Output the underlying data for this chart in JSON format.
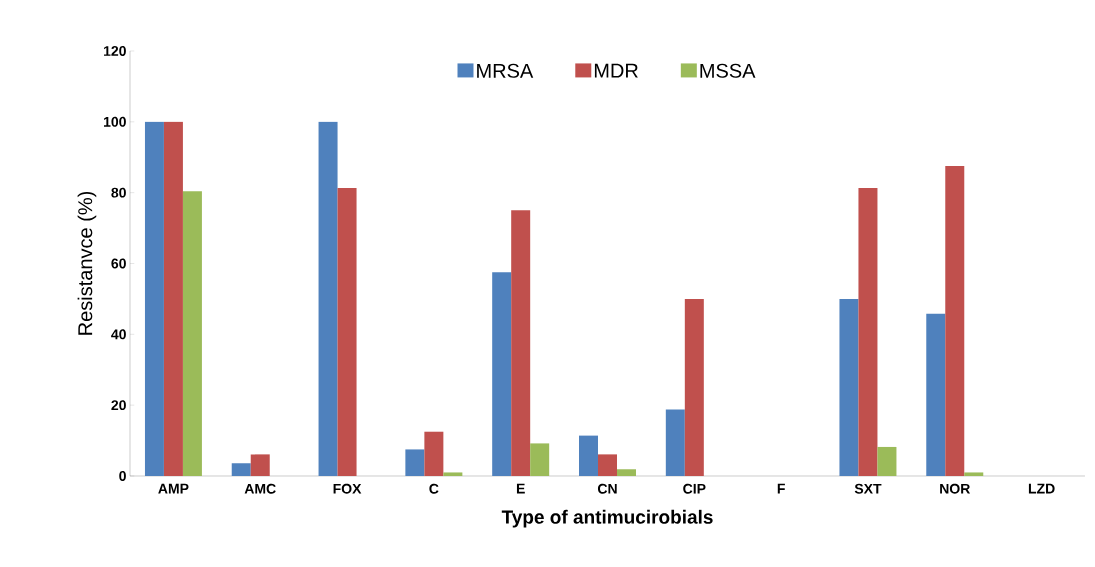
{
  "chart_data": {
    "type": "bar",
    "xlabel": "Type of antimucirobials",
    "ylabel": "Resistanvce (%)",
    "categories": [
      "AMP",
      "AMC",
      "FOX",
      "C",
      "E",
      "CN",
      "CIP",
      "F",
      "SXT",
      "NOR",
      "LZD"
    ],
    "series": [
      {
        "name": "MRSA",
        "color": "#4f81bd",
        "values": [
          100,
          3.6,
          100,
          7.5,
          57.5,
          11.4,
          18.8,
          0,
          50,
          45.8,
          0
        ]
      },
      {
        "name": "MDR",
        "color": "#c0504d",
        "values": [
          100,
          6.1,
          81.3,
          12.5,
          75,
          6.1,
          50,
          0,
          81.3,
          87.5,
          0
        ]
      },
      {
        "name": "MSSA",
        "color": "#9bbb59",
        "values": [
          80.4,
          0,
          0,
          1,
          9.2,
          1.9,
          0,
          0,
          8.2,
          1,
          0
        ]
      }
    ],
    "ylim": [
      0,
      120
    ],
    "yticks": [
      0,
      20,
      40,
      60,
      80,
      100,
      120
    ],
    "grid": false,
    "legend": "top"
  }
}
